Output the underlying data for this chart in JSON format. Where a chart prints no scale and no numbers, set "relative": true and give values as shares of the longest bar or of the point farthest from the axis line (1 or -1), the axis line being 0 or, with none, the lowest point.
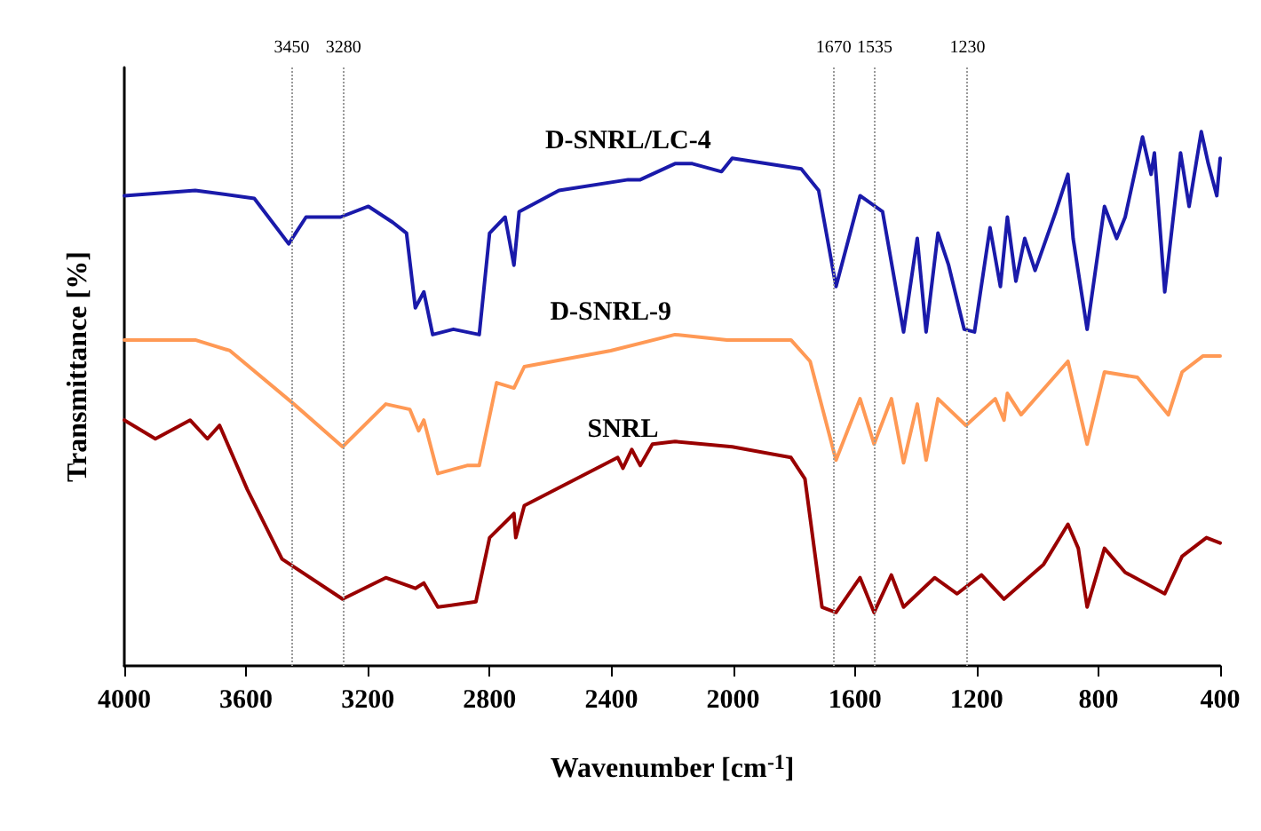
{
  "chart_data": {
    "type": "line",
    "relative": true,
    "xlabel": "Wavenumber [cm$^{-1}$]",
    "ylabel": "Transmittance [%]",
    "xlim": [
      4000,
      400
    ],
    "xticks": [
      4000,
      3600,
      3200,
      2800,
      2400,
      2000,
      1600,
      1200,
      800,
      400
    ],
    "grid": false,
    "legend": false,
    "marker": "none",
    "line_style": "solid",
    "ref_lines": [
      {
        "axis": "x",
        "value": 3450,
        "label": "3450",
        "color": "#999999",
        "line_style": "dotted"
      },
      {
        "axis": "x",
        "value": 3280,
        "label": "3280",
        "color": "#999999",
        "line_style": "dotted"
      },
      {
        "axis": "x",
        "value": 1670,
        "label": "1670",
        "color": "#999999",
        "line_style": "dotted"
      },
      {
        "axis": "x",
        "value": 1535,
        "label": "1535",
        "color": "#999999",
        "line_style": "dotted"
      },
      {
        "axis": "x",
        "value": 1230,
        "label": "1230",
        "color": "#999999",
        "line_style": "dotted"
      }
    ],
    "series": [
      {
        "name": "D-SNRL/LC-4",
        "color": "#1a1aaa",
        "x": [
          4000,
          3767,
          3573,
          3460,
          3403,
          3290,
          3198,
          3118,
          3073,
          3044,
          3016,
          2987,
          2919,
          2834,
          2800,
          2749,
          2720,
          2703,
          2572,
          2345,
          2305,
          2191,
          2134,
          2038,
          2003,
          1776,
          1719,
          1662,
          1583,
          1509,
          1440,
          1395,
          1366,
          1327,
          1292,
          1241,
          1207,
          1156,
          1122,
          1099,
          1071,
          1042,
          1008,
          940,
          900,
          883,
          837,
          780,
          740,
          712,
          655,
          627,
          616,
          582,
          530,
          502,
          462,
          439,
          411,
          400
        ],
        "values": [
          0.88,
          0.89,
          0.875,
          0.79,
          0.84,
          0.84,
          0.86,
          0.83,
          0.81,
          0.67,
          0.7,
          0.62,
          0.63,
          0.62,
          0.81,
          0.84,
          0.75,
          0.85,
          0.89,
          0.91,
          0.91,
          0.94,
          0.94,
          0.925,
          0.95,
          0.93,
          0.89,
          0.71,
          0.88,
          0.85,
          0.625,
          0.8,
          0.625,
          0.81,
          0.75,
          0.63,
          0.625,
          0.82,
          0.71,
          0.84,
          0.72,
          0.8,
          0.74,
          0.85,
          0.92,
          0.8,
          0.63,
          0.86,
          0.8,
          0.84,
          0.99,
          0.92,
          0.96,
          0.7,
          0.96,
          0.86,
          1.0,
          0.94,
          0.88,
          0.95
        ]
      },
      {
        "name": "D-SNRL-9",
        "color": "#ff9955",
        "x": [
          4000,
          3767,
          3653,
          3443,
          3283,
          3141,
          3062,
          3033,
          3016,
          2970,
          2874,
          2834,
          2777,
          2720,
          2686,
          2402,
          2191,
          2020,
          1810,
          1747,
          1662,
          1583,
          1537,
          1480,
          1440,
          1395,
          1366,
          1327,
          1235,
          1139,
          1110,
          1099,
          1054,
          900,
          837,
          780,
          672,
          570,
          525,
          456,
          400
        ],
        "values": [
          0.61,
          0.61,
          0.59,
          0.49,
          0.41,
          0.49,
          0.48,
          0.44,
          0.46,
          0.36,
          0.375,
          0.375,
          0.53,
          0.52,
          0.56,
          0.59,
          0.62,
          0.61,
          0.61,
          0.57,
          0.385,
          0.5,
          0.415,
          0.5,
          0.38,
          0.49,
          0.385,
          0.5,
          0.45,
          0.5,
          0.46,
          0.51,
          0.47,
          0.57,
          0.415,
          0.55,
          0.54,
          0.47,
          0.55,
          0.58,
          0.58
        ]
      },
      {
        "name": "SNRL",
        "color": "#990000",
        "x": [
          4000,
          3898,
          3784,
          3727,
          3687,
          3596,
          3482,
          3283,
          3141,
          3044,
          3016,
          2970,
          2845,
          2800,
          2720,
          2714,
          2686,
          2379,
          2362,
          2333,
          2305,
          2265,
          2191,
          2003,
          1810,
          1764,
          1708,
          1662,
          1583,
          1537,
          1480,
          1440,
          1338,
          1264,
          1184,
          1110,
          980,
          900,
          866,
          837,
          780,
          712,
          582,
          525,
          445,
          400
        ],
        "values": [
          0.46,
          0.425,
          0.46,
          0.425,
          0.45,
          0.33,
          0.2,
          0.125,
          0.165,
          0.145,
          0.155,
          0.11,
          0.12,
          0.24,
          0.285,
          0.24,
          0.3,
          0.39,
          0.37,
          0.405,
          0.375,
          0.415,
          0.42,
          0.41,
          0.39,
          0.35,
          0.11,
          0.1,
          0.165,
          0.1,
          0.17,
          0.11,
          0.165,
          0.135,
          0.17,
          0.125,
          0.19,
          0.265,
          0.22,
          0.11,
          0.22,
          0.175,
          0.135,
          0.205,
          0.24,
          0.23
        ]
      }
    ]
  }
}
